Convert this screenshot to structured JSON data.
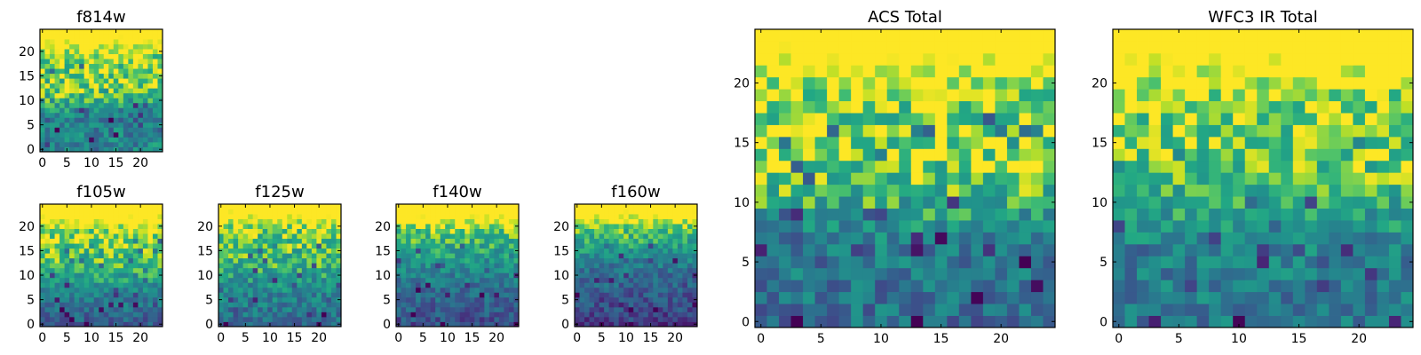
{
  "chart_data": [
    {
      "type": "heatmap",
      "title": "f814w",
      "xticks": [
        "0",
        "5",
        "10",
        "15",
        "20"
      ],
      "yticks": [
        "0",
        "5",
        "10",
        "15",
        "20"
      ],
      "xlim": [
        -0.5,
        24.5
      ],
      "ylim": [
        -0.5,
        24.5
      ],
      "size": 25,
      "seed": 11,
      "profile": [
        0.95,
        0.9,
        0.85,
        0.5,
        0.6
      ],
      "noise": 0.2,
      "colormap": "viridis",
      "grid": false
    },
    {
      "type": "heatmap",
      "title": "f105w",
      "xticks": [
        "0",
        "5",
        "10",
        "15",
        "20"
      ],
      "yticks": [
        "0",
        "5",
        "10",
        "15",
        "20"
      ],
      "xlim": [
        -0.5,
        24.5
      ],
      "ylim": [
        -0.5,
        24.5
      ],
      "size": 25,
      "seed": 23,
      "profile": [
        0.92,
        0.88,
        0.8,
        0.55,
        0.35
      ],
      "noise": 0.16,
      "colormap": "viridis",
      "grid": false
    },
    {
      "type": "heatmap",
      "title": "f125w",
      "xticks": [
        "0",
        "5",
        "10",
        "15",
        "20"
      ],
      "yticks": [
        "0",
        "5",
        "10",
        "15",
        "20"
      ],
      "xlim": [
        -0.5,
        24.5
      ],
      "ylim": [
        -0.5,
        24.5
      ],
      "size": 25,
      "seed": 37,
      "profile": [
        0.92,
        0.85,
        0.75,
        0.55,
        0.45
      ],
      "noise": 0.18,
      "colormap": "viridis",
      "grid": false
    },
    {
      "type": "heatmap",
      "title": "f140w",
      "xticks": [
        "0",
        "5",
        "10",
        "15",
        "20"
      ],
      "yticks": [
        "0",
        "5",
        "10",
        "15",
        "20"
      ],
      "xlim": [
        -0.5,
        24.5
      ],
      "ylim": [
        -0.5,
        24.5
      ],
      "size": 25,
      "seed": 41,
      "profile": [
        0.95,
        0.8,
        0.6,
        0.42,
        0.3
      ],
      "noise": 0.16,
      "colormap": "viridis",
      "grid": false
    },
    {
      "type": "heatmap",
      "title": "f160w",
      "xticks": [
        "0",
        "5",
        "10",
        "15",
        "20"
      ],
      "yticks": [
        "0",
        "5",
        "10",
        "15",
        "20"
      ],
      "xlim": [
        -0.5,
        24.5
      ],
      "ylim": [
        -0.5,
        24.5
      ],
      "size": 25,
      "seed": 53,
      "profile": [
        0.92,
        0.78,
        0.5,
        0.35,
        0.22
      ],
      "noise": 0.16,
      "colormap": "viridis",
      "grid": false
    },
    {
      "type": "heatmap",
      "title": "ACS Total",
      "xticks": [
        "0",
        "5",
        "10",
        "15",
        "20"
      ],
      "yticks": [
        "0",
        "5",
        "10",
        "15",
        "20"
      ],
      "xlim": [
        -0.5,
        24.5
      ],
      "ylim": [
        -0.5,
        24.5
      ],
      "size": 25,
      "seed": 67,
      "profile": [
        0.95,
        0.9,
        0.85,
        0.5,
        0.45
      ],
      "noise": 0.2,
      "colormap": "viridis",
      "grid": false
    },
    {
      "type": "heatmap",
      "title": "WFC3 IR Total",
      "xticks": [
        "0",
        "5",
        "10",
        "15",
        "20"
      ],
      "yticks": [
        "0",
        "5",
        "10",
        "15",
        "20"
      ],
      "xlim": [
        -0.5,
        24.5
      ],
      "ylim": [
        -0.5,
        24.5
      ],
      "size": 25,
      "seed": 79,
      "profile": [
        0.95,
        0.9,
        0.82,
        0.55,
        0.5
      ],
      "noise": 0.18,
      "colormap": "viridis",
      "grid": false
    }
  ]
}
